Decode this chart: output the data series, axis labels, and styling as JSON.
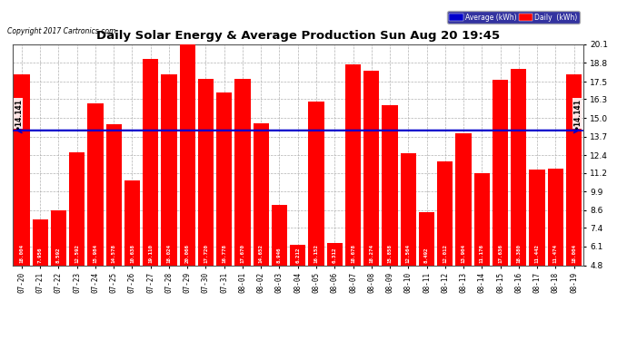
{
  "title": "Daily Solar Energy & Average Production Sun Aug 20 19:45",
  "copyright": "Copyright 2017 Cartronics.com",
  "categories": [
    "07-20",
    "07-21",
    "07-22",
    "07-23",
    "07-24",
    "07-25",
    "07-26",
    "07-27",
    "07-28",
    "07-29",
    "07-30",
    "07-31",
    "08-01",
    "08-02",
    "08-03",
    "08-04",
    "08-05",
    "08-06",
    "08-07",
    "08-08",
    "08-09",
    "08-10",
    "08-11",
    "08-12",
    "08-13",
    "08-14",
    "08-15",
    "08-16",
    "08-17",
    "08-18",
    "08-19"
  ],
  "values": [
    18.004,
    7.956,
    8.592,
    12.592,
    15.984,
    14.578,
    10.638,
    19.11,
    18.024,
    20.066,
    17.72,
    16.778,
    17.67,
    14.652,
    8.946,
    6.212,
    16.152,
    6.312,
    18.678,
    18.274,
    15.858,
    12.564,
    8.492,
    12.012,
    13.904,
    11.176,
    17.636,
    18.38,
    11.442,
    11.474,
    18.004
  ],
  "val_labels": [
    "18.004",
    "7.956",
    "8.592",
    "12.592",
    "15.984",
    "14.578",
    "10.638",
    "19.110",
    "18.024",
    "20.066",
    "17.720",
    "16.778",
    "17.670",
    "14.652",
    "8.946",
    "6.212",
    "16.152",
    "6.312",
    "18.678",
    "18.274",
    "15.858",
    "12.564",
    "8.492",
    "12.012",
    "13.904",
    "11.176",
    "17.636",
    "18.380",
    "11.442",
    "11.474",
    "18.004"
  ],
  "average_line": 14.141,
  "ylim_min": 4.8,
  "ylim_max": 20.1,
  "yticks": [
    4.8,
    6.1,
    7.4,
    8.6,
    9.9,
    11.2,
    12.4,
    13.7,
    15.0,
    16.3,
    17.5,
    18.8,
    20.1
  ],
  "bar_color": "#ff0000",
  "avg_line_color": "#0000cc",
  "background_color": "#ffffff",
  "plot_bg_color": "#ffffff",
  "grid_color": "#aaaaaa",
  "text_color": "#000000",
  "bar_text_color": "#ffffff",
  "legend_avg_color": "#0000cc",
  "legend_daily_color": "#ff0000",
  "avg_label": "Average (kWh)",
  "daily_label": "Daily  (kWh)",
  "avg_annotation": "14.141",
  "figsize": [
    6.9,
    3.75
  ],
  "dpi": 100
}
